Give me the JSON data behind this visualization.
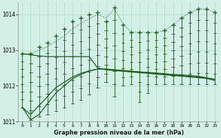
{
  "xlabel": "Graphe pression niveau de la mer (hPa)",
  "hours": [
    0,
    1,
    2,
    3,
    4,
    5,
    6,
    7,
    8,
    9,
    10,
    11,
    12,
    13,
    14,
    15,
    16,
    17,
    18,
    19,
    20,
    21,
    22,
    23
  ],
  "max_values": [
    1012.9,
    1012.9,
    1013.1,
    1013.2,
    1013.4,
    1013.6,
    1013.8,
    1013.9,
    1014.0,
    1014.05,
    1013.8,
    1014.2,
    1013.7,
    1013.5,
    1013.5,
    1013.5,
    1013.5,
    1013.55,
    1013.7,
    1013.9,
    1014.05,
    1014.15,
    1014.15,
    1014.05
  ],
  "min_values": [
    1011.4,
    1011.05,
    1011.15,
    1011.2,
    1011.3,
    1011.4,
    1011.5,
    1011.6,
    1011.75,
    1011.95,
    1012.1,
    1011.7,
    1012.0,
    1012.05,
    1011.55,
    1011.8,
    1012.05,
    1012.05,
    1012.05,
    1012.05,
    1012.05,
    1012.05,
    1012.05,
    1012.05
  ],
  "line_upper": [
    1012.9,
    1012.87,
    1012.84,
    1012.82,
    1012.82,
    1012.82,
    1012.82,
    1012.82,
    1012.82,
    1012.5,
    1012.45,
    1012.43,
    1012.41,
    1012.39,
    1012.37,
    1012.35,
    1012.33,
    1012.31,
    1012.29,
    1012.27,
    1012.25,
    1012.23,
    1012.21,
    1012.19
  ],
  "line_lower_start": [
    1011.4,
    1011.05,
    1011.2,
    1011.5,
    1011.8,
    1012.0,
    1012.2,
    1012.32,
    1012.42,
    1012.47,
    1012.47,
    1012.45,
    1012.43,
    1012.41,
    1012.39,
    1012.37,
    1012.35,
    1012.33,
    1012.31,
    1012.29,
    1012.27,
    1012.25,
    1012.21,
    1012.15
  ],
  "line_mid": [
    1011.4,
    1011.2,
    1011.45,
    1011.7,
    1011.95,
    1012.1,
    1012.25,
    1012.35,
    1012.42,
    1012.47,
    1012.47,
    1012.45,
    1012.43,
    1012.41,
    1012.39,
    1012.38,
    1012.36,
    1012.34,
    1012.32,
    1012.31,
    1012.29,
    1012.27,
    1012.23,
    1012.18
  ],
  "line_dotted": [
    1012.9,
    1012.9,
    1013.0,
    1013.1,
    1013.25,
    1013.4,
    1013.6,
    1013.75,
    1013.88,
    1014.0,
    1013.9,
    1014.15,
    1013.75,
    1013.5,
    1013.5,
    1013.5,
    1013.5,
    1013.55,
    1013.7,
    1013.9,
    1014.05,
    1014.15,
    1014.15,
    1014.05
  ],
  "ylim": [
    1011.0,
    1014.35
  ],
  "yticks": [
    1011,
    1012,
    1013,
    1014
  ],
  "bg_color": "#d4eee8",
  "line_color": "#1a5c1a",
  "grid_color": "#b0d8cc"
}
